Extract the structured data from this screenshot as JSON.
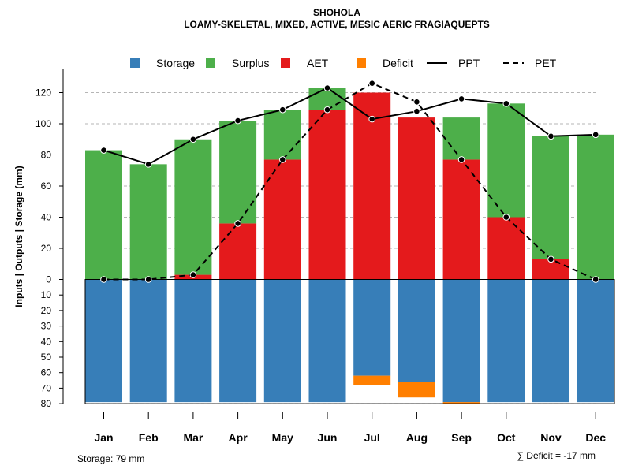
{
  "chart_data": {
    "type": "bar",
    "title": "SHOHOLA",
    "subtitle": "LOAMY-SKELETAL, MIXED, ACTIVE, MESIC AERIC FRAGIAQUEPTS",
    "ylabel": "Inputs | Outputs | Storage     (mm)",
    "categories": [
      "Jan",
      "Feb",
      "Mar",
      "Apr",
      "May",
      "Jun",
      "Jul",
      "Aug",
      "Sep",
      "Oct",
      "Nov",
      "Dec"
    ],
    "ylim_top": [
      0,
      130
    ],
    "ylim_bottom": [
      0,
      80
    ],
    "yticks_top": [
      0,
      20,
      40,
      60,
      80,
      100,
      120
    ],
    "yticks_bottom": [
      10,
      20,
      30,
      40,
      50,
      60,
      70,
      80
    ],
    "series": [
      {
        "name": "AET",
        "color": "#E41A1C",
        "values": [
          0,
          0,
          3,
          36,
          77,
          109,
          120,
          104,
          77,
          40,
          13,
          0
        ]
      },
      {
        "name": "Surplus",
        "color": "#4DAF4A",
        "values": [
          83,
          74,
          87,
          66,
          32,
          14,
          0,
          0,
          27,
          73,
          79,
          93
        ]
      },
      {
        "name": "Storage",
        "color": "#377EB8",
        "values": [
          79,
          79,
          79,
          79,
          79,
          79,
          62,
          66,
          79,
          79,
          79,
          79
        ]
      },
      {
        "name": "Deficit",
        "color": "#FF7F00",
        "values": [
          0,
          0,
          0,
          0,
          0,
          0,
          6,
          10,
          1,
          0,
          0,
          0
        ]
      },
      {
        "name": "PPT",
        "color": "#000000",
        "line": "solid",
        "values": [
          83,
          74,
          90,
          102,
          109,
          123,
          103,
          108,
          116,
          113,
          92,
          93
        ]
      },
      {
        "name": "PET",
        "color": "#000000",
        "line": "dashed",
        "values": [
          0,
          0,
          3,
          36,
          77,
          109,
          126,
          114,
          77,
          40,
          13,
          0
        ]
      }
    ],
    "legend": [
      {
        "label": "Storage",
        "type": "box",
        "color": "#377EB8"
      },
      {
        "label": "Surplus",
        "type": "box",
        "color": "#4DAF4A"
      },
      {
        "label": "AET",
        "type": "box",
        "color": "#E41A1C"
      },
      {
        "label": "Deficit",
        "type": "box",
        "color": "#FF7F00"
      },
      {
        "label": "PPT",
        "type": "line",
        "color": "#000000",
        "dash": false
      },
      {
        "label": "PET",
        "type": "line",
        "color": "#000000",
        "dash": true
      }
    ],
    "legend_position": "top",
    "grid": "horizontal-dashed",
    "storage_note": "Storage: 79 mm",
    "deficit_note": "∑ Deficit = -17 mm"
  }
}
